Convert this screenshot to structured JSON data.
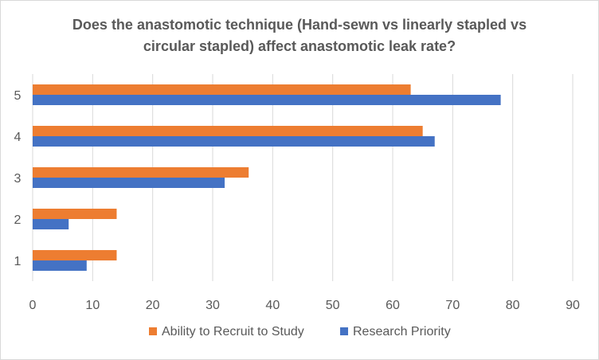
{
  "chart_data": {
    "type": "bar",
    "orientation": "horizontal",
    "title_lines": [
      "Does the anastomotic  technique (Hand-sewn vs linearly stapled vs",
      "circular stapled) affect anastomotic leak rate?"
    ],
    "categories": [
      "1",
      "2",
      "3",
      "4",
      "5"
    ],
    "series": [
      {
        "name": "Ability to Recruit to Study",
        "color": "#ED7D31",
        "values": [
          14,
          14,
          36,
          65,
          63
        ]
      },
      {
        "name": "Research Priority",
        "color": "#4472C4",
        "values": [
          9,
          6,
          32,
          67,
          78
        ]
      }
    ],
    "xlim": [
      0,
      90
    ],
    "xticks": [
      0,
      10,
      20,
      30,
      40,
      50,
      60,
      70,
      80,
      90
    ],
    "grid": true,
    "legend_position": "bottom"
  }
}
